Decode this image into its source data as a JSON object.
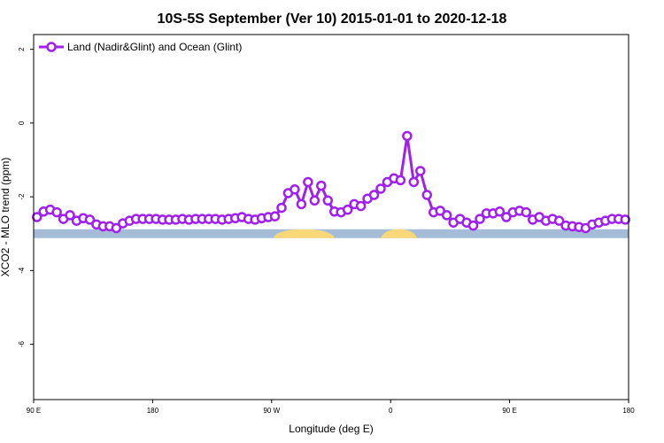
{
  "chart_data": {
    "type": "line",
    "title": "10S-5S September (Ver 10)   2015-01-01 to 2020-12-18",
    "xlabel": "Longitude (deg E)",
    "ylabel": "XCO2 - MLO trend (ppm)",
    "xlim": [
      90,
      450
    ],
    "ylim": [
      -7.5,
      2.4
    ],
    "x_ticks": [
      90,
      162,
      234,
      306,
      378,
      450
    ],
    "x_tick_labels": [
      "90 E",
      "180",
      "90 W",
      "0",
      "90 E",
      "180"
    ],
    "y_ticks": [
      2,
      0,
      -2,
      -4,
      -6
    ],
    "y_tick_labels": [
      "2",
      "0",
      "-2",
      "-4",
      "-6"
    ],
    "legend_position": "top-left",
    "grid": false,
    "colors": {
      "series": "#a020f0",
      "ocean_band": "#a4bcd8",
      "land_band": "#f8d878"
    },
    "map_band": {
      "y_top": -2.88,
      "y_bottom": -3.12,
      "land_segments": [
        [
          235,
          272
        ],
        [
          300,
          322
        ]
      ]
    },
    "series": [
      {
        "name": "Land (Nadir&Glint) and Ocean (Glint)",
        "x": [
          92,
          96,
          100,
          104,
          108,
          112,
          116,
          120,
          124,
          128,
          132,
          136,
          140,
          144,
          148,
          152,
          156,
          160,
          164,
          168,
          172,
          176,
          180,
          184,
          188,
          192,
          196,
          200,
          204,
          208,
          212,
          216,
          220,
          224,
          228,
          232,
          236,
          240,
          244,
          248,
          252,
          256,
          260,
          264,
          268,
          272,
          276,
          280,
          284,
          288,
          292,
          296,
          300,
          304,
          308,
          312,
          316,
          320,
          324,
          328,
          332,
          336,
          340,
          344,
          348,
          352,
          356,
          360,
          364,
          368,
          372,
          376,
          380,
          384,
          388,
          392,
          396,
          400,
          404,
          408,
          412,
          416,
          420,
          424,
          428,
          432,
          436,
          440,
          444,
          448
        ],
        "y": [
          -2.55,
          -2.4,
          -2.35,
          -2.42,
          -2.6,
          -2.5,
          -2.65,
          -2.58,
          -2.62,
          -2.75,
          -2.8,
          -2.8,
          -2.85,
          -2.72,
          -2.65,
          -2.6,
          -2.6,
          -2.6,
          -2.6,
          -2.62,
          -2.62,
          -2.62,
          -2.6,
          -2.62,
          -2.6,
          -2.6,
          -2.6,
          -2.6,
          -2.62,
          -2.6,
          -2.58,
          -2.55,
          -2.6,
          -2.62,
          -2.58,
          -2.55,
          -2.53,
          -2.3,
          -1.9,
          -1.8,
          -2.2,
          -1.6,
          -2.1,
          -1.7,
          -2.1,
          -2.4,
          -2.42,
          -2.35,
          -2.2,
          -2.25,
          -2.05,
          -1.95,
          -1.78,
          -1.6,
          -1.5,
          -1.55,
          -0.35,
          -1.6,
          -1.3,
          -1.95,
          -2.42,
          -2.38,
          -2.5,
          -2.7,
          -2.6,
          -2.7,
          -2.78,
          -2.6,
          -2.45,
          -2.45,
          -2.4,
          -2.55,
          -2.42,
          -2.38,
          -2.42,
          -2.62,
          -2.55,
          -2.65,
          -2.6,
          -2.65,
          -2.78,
          -2.8,
          -2.82,
          -2.85,
          -2.75,
          -2.7,
          -2.65,
          -2.6,
          -2.6,
          -2.62
        ]
      }
    ]
  }
}
